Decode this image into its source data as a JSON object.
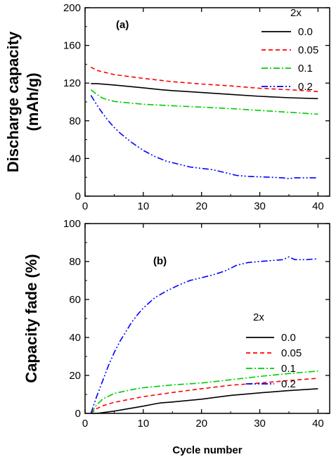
{
  "figure": {
    "xlabel": "Cycle number"
  },
  "chart_data": [
    {
      "type": "line",
      "panel_label": "(a)",
      "ylabel_lines": [
        "Discharge capacity",
        "(mAh/g)"
      ],
      "xlim": [
        0,
        42
      ],
      "ylim": [
        0,
        200
      ],
      "xticks": [
        0,
        10,
        20,
        30,
        40
      ],
      "yticks": [
        0,
        40,
        80,
        120,
        160,
        200
      ],
      "grid": false,
      "legend_title": "2x",
      "legend_position": "top-right",
      "series": [
        {
          "name": "0.0",
          "color": "#000000",
          "dash": "solid",
          "x": [
            1,
            2,
            5,
            10,
            13,
            15,
            20,
            25,
            30,
            35,
            40
          ],
          "y": [
            119.5,
            119.5,
            118,
            115,
            113,
            112,
            110,
            108,
            106,
            104.5,
            103.5
          ]
        },
        {
          "name": "0.05",
          "color": "#ff0000",
          "dash": "dash",
          "x": [
            1,
            2,
            5,
            10,
            15,
            20,
            25,
            30,
            35,
            40
          ],
          "y": [
            137,
            133.5,
            129,
            125,
            121.5,
            119,
            117,
            114.5,
            113,
            111
          ]
        },
        {
          "name": "0.1",
          "color": "#00cc00",
          "dash": "dashdot",
          "x": [
            1,
            2,
            3,
            5,
            10,
            15,
            20,
            25,
            30,
            35,
            40
          ],
          "y": [
            113,
            108,
            104,
            100.5,
            97.5,
            96,
            94.5,
            93,
            91,
            89,
            87
          ]
        },
        {
          "name": "0.2",
          "color": "#0000ff",
          "dash": "dashdotdot",
          "x": [
            1,
            2,
            3,
            4,
            5,
            6,
            8,
            10,
            12,
            14,
            16,
            18,
            20,
            22,
            24,
            26,
            28,
            30,
            32,
            34,
            35,
            36,
            38,
            40
          ],
          "y": [
            107,
            97,
            88,
            80,
            73,
            67,
            57,
            48.5,
            42,
            37,
            34,
            31,
            29.5,
            28,
            25,
            22,
            21,
            20.5,
            20,
            19.5,
            18.5,
            19.5,
            19.5,
            19.5
          ]
        }
      ]
    },
    {
      "type": "line",
      "panel_label": "(b)",
      "ylabel_lines": [
        "Capacity fade (%)"
      ],
      "xlim": [
        0,
        42
      ],
      "ylim": [
        0,
        100
      ],
      "xticks": [
        0,
        10,
        20,
        30,
        40
      ],
      "yticks": [
        0,
        20,
        40,
        60,
        80,
        100
      ],
      "grid": false,
      "legend_title": "2x",
      "legend_position": "center-right",
      "series": [
        {
          "name": "0.0",
          "color": "#000000",
          "dash": "solid",
          "x": [
            1,
            2,
            5,
            10,
            12,
            13,
            15,
            20,
            25,
            30,
            35,
            40
          ],
          "y": [
            0,
            0,
            1.2,
            3.8,
            5,
            5.5,
            6,
            7.5,
            9.5,
            10.8,
            12,
            13
          ]
        },
        {
          "name": "0.05",
          "color": "#ff0000",
          "dash": "dash",
          "x": [
            1,
            2,
            3,
            5,
            10,
            15,
            20,
            25,
            30,
            35,
            40
          ],
          "y": [
            0,
            2.5,
            4,
            5.8,
            8.8,
            11,
            13,
            14.8,
            16,
            17.3,
            18.5
          ]
        },
        {
          "name": "0.1",
          "color": "#00cc00",
          "dash": "dashdot",
          "x": [
            1,
            2,
            3,
            5,
            8,
            10,
            15,
            20,
            25,
            30,
            35,
            40
          ],
          "y": [
            0,
            4.5,
            7.5,
            10.5,
            12.5,
            13.5,
            15,
            16,
            17.7,
            19.5,
            21,
            22.3
          ]
        },
        {
          "name": "0.2",
          "color": "#0000ff",
          "dash": "dashdotdot",
          "x": [
            1,
            2,
            3,
            4,
            5,
            6,
            7,
            8,
            9,
            10,
            12,
            14,
            16,
            18,
            20,
            22,
            24,
            26,
            28,
            30,
            32,
            34,
            35,
            36,
            38,
            40
          ],
          "y": [
            0,
            9,
            17,
            25,
            32,
            38,
            43,
            48,
            52,
            55.5,
            61,
            64.5,
            67.5,
            70,
            71.5,
            73,
            75,
            78,
            79.5,
            80,
            80.5,
            81,
            82.5,
            81,
            81,
            81.5
          ]
        }
      ]
    }
  ]
}
